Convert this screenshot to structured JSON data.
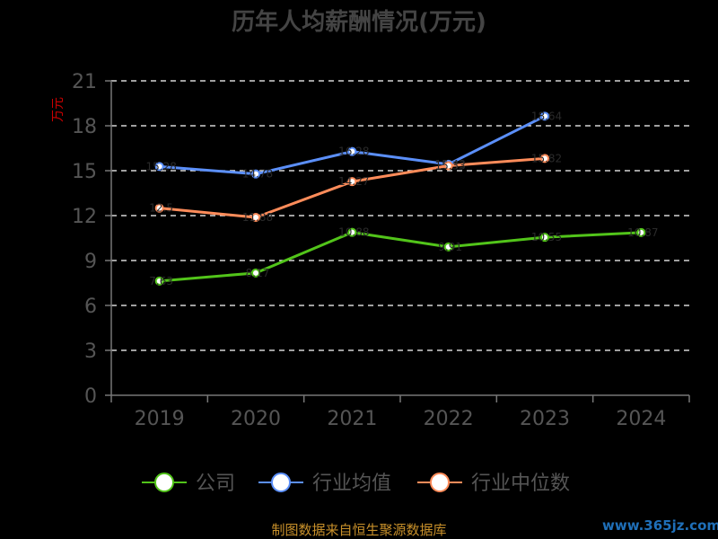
{
  "chart_data": {
    "type": "line",
    "title": "历年人均薪酬情况(万元)",
    "ylabel": "万元",
    "categories": [
      "2019",
      "2020",
      "2021",
      "2022",
      "2023",
      "2024"
    ],
    "ylim": [
      0,
      21
    ],
    "yticks": [
      0,
      3,
      6,
      9,
      12,
      15,
      18,
      21
    ],
    "grid": true,
    "legend_position": "bottom",
    "series": [
      {
        "name": "公司",
        "color": "#52c41a",
        "values": [
          7.63,
          8.17,
          10.88,
          9.91,
          10.55,
          10.87
        ]
      },
      {
        "name": "行业均值",
        "color": "#5b8ff9",
        "values": [
          15.28,
          14.78,
          16.28,
          15.43,
          18.64,
          null
        ]
      },
      {
        "name": "行业中位数",
        "color": "#ff8c5a",
        "values": [
          12.5,
          11.88,
          14.27,
          15.33,
          15.82,
          null
        ]
      }
    ]
  },
  "footer": {
    "source": "制图数据来自恒生聚源数据库",
    "watermark": "www.365jz.com"
  }
}
